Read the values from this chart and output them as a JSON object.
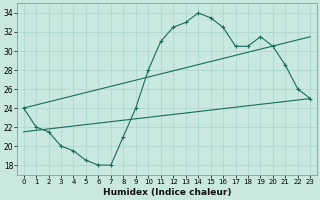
{
  "title": "",
  "xlabel": "Humidex (Indice chaleur)",
  "ylabel": "",
  "bg_color": "#c8e8e0",
  "line_color": "#1a6b5a",
  "grid_color": "#b0d8d0",
  "curve_x": [
    0,
    1,
    2,
    3,
    4,
    5,
    6,
    7,
    8,
    9,
    10,
    11,
    12,
    13,
    14,
    15,
    16,
    17,
    18,
    19,
    20,
    21,
    22,
    23
  ],
  "curve_y": [
    24,
    22,
    21.5,
    20,
    19.5,
    18.5,
    18,
    18,
    21,
    24,
    28,
    31,
    32.5,
    33,
    34,
    33.5,
    32.5,
    30.5,
    30.5,
    31.5,
    30.5,
    28.5,
    26,
    25
  ],
  "line1_x": [
    0,
    23
  ],
  "line1_y": [
    24,
    31.5
  ],
  "line2_x": [
    0,
    23
  ],
  "line2_y": [
    21.5,
    25.0
  ],
  "xlim": [
    -0.5,
    23.5
  ],
  "ylim": [
    17,
    35
  ],
  "xticks": [
    0,
    1,
    2,
    3,
    4,
    5,
    6,
    7,
    8,
    9,
    10,
    11,
    12,
    13,
    14,
    15,
    16,
    17,
    18,
    19,
    20,
    21,
    22,
    23
  ],
  "yticks": [
    18,
    20,
    22,
    24,
    26,
    28,
    30,
    32,
    34
  ],
  "figsize": [
    3.2,
    2.0
  ],
  "dpi": 100
}
